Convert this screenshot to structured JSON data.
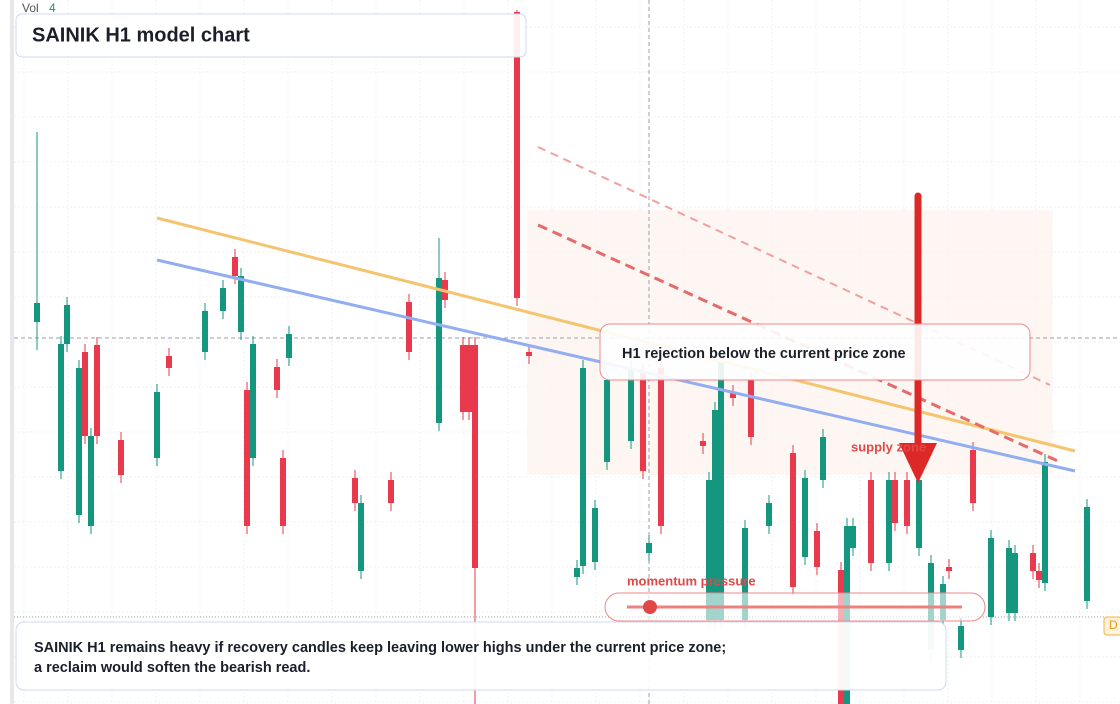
{
  "chart_data": {
    "type": "candlestick",
    "title": "SAINIK H1 model chart",
    "volume_label": "Vol",
    "volume_value": 4,
    "x": [
      1,
      5,
      6,
      8,
      9,
      10,
      11,
      15,
      21,
      23,
      29,
      32,
      34,
      35,
      36,
      37,
      41,
      42,
      43,
      54,
      55,
      60,
      63,
      68,
      69,
      72,
      73,
      74,
      81,
      83,
      91,
      92,
      94,
      96,
      100,
      102,
      103,
      105,
      112,
      113,
      114,
      115,
      117,
      119,
      120,
      123,
      127,
      129,
      131,
      132,
      135,
      136,
      137,
      140,
      143,
      144,
      146,
      148,
      150,
      152,
      153,
      155,
      157,
      160,
      163,
      164,
      167,
      168,
      169,
      176
    ],
    "open": [
      382,
      233,
      360,
      189,
      352,
      178,
      359,
      264,
      246,
      348,
      352,
      393,
      447,
      372,
      314,
      246,
      337,
      246,
      346,
      226,
      133,
      224,
      402,
      281,
      424,
      359,
      359,
      359,
      692,
      352,
      127,
      138,
      142,
      242,
      263,
      332,
      151,
      336,
      263,
      84,
      84,
      84,
      311,
      84,
      324,
      178,
      251,
      147,
      173,
      224,
      134,
      0,
      156,
      224,
      141,
      224,
      224,
      156,
      54,
      84,
      137,
      54,
      254,
      87,
      91,
      91,
      151,
      133,
      121,
      103
    ],
    "high": [
      572,
      368,
      407,
      344,
      360,
      276,
      367,
      272,
      320,
      356,
      401,
      424,
      455,
      436,
      322,
      368,
      345,
      254,
      378,
      234,
      209,
      232,
      410,
      466,
      432,
      367,
      367,
      367,
      694,
      360,
      144,
      344,
      204,
      332,
      344,
      340,
      169,
      344,
      271,
      232,
      302,
      352,
      319,
      184,
      332,
      209,
      259,
      234,
      181,
      275,
      142,
      186,
      186,
      232,
      232,
      232,
      232,
      232,
      149,
      128,
      145,
      86,
      262,
      174,
      164,
      159,
      159,
      141,
      250,
      205
    ],
    "low": [
      354,
      225,
      352,
      181,
      260,
      170,
      260,
      221,
      238,
      328,
      344,
      385,
      420,
      364,
      170,
      238,
      306,
      170,
      338,
      193,
      125,
      193,
      344,
      273,
      396,
      284,
      284,
      0,
      398,
      340,
      119,
      130,
      134,
      234,
      255,
      225,
      143,
      170,
      250,
      76,
      76,
      76,
      298,
      76,
      259,
      170,
      109,
      139,
      129,
      216,
      0,
      0,
      148,
      133,
      133,
      173,
      170,
      148,
      44,
      76,
      125,
      46,
      193,
      79,
      83,
      83,
      125,
      116,
      113,
      95
    ],
    "close": [
      401,
      360,
      399,
      336,
      268,
      268,
      268,
      229,
      312,
      336,
      393,
      416,
      428,
      428,
      178,
      360,
      314,
      178,
      370,
      201,
      201,
      201,
      352,
      426,
      404,
      292,
      292,
      136,
      406,
      348,
      136,
      336,
      196,
      324,
      336,
      233,
      161,
      178,
      258,
      224,
      294,
      344,
      306,
      176,
      267,
      201,
      117,
      226,
      137,
      267,
      0,
      178,
      178,
      141,
      224,
      181,
      178,
      224,
      141,
      120,
      133,
      78,
      201,
      166,
      156,
      151,
      133,
      124,
      242,
      197
    ],
    "xlim": [
      0,
      178
    ],
    "ylim": [
      0,
      704
    ],
    "up_color": "#14967f",
    "down_color": "#e8394d",
    "annotations": [
      "H1 rejection below the current price zone",
      "supply zone",
      "momentum pressure"
    ],
    "note": "SAINIK H1 remains heavy if recovery candles keep leaving lower highs under the current price zone; a reclaim would soften the bearish read.",
    "edge_label": "D"
  }
}
